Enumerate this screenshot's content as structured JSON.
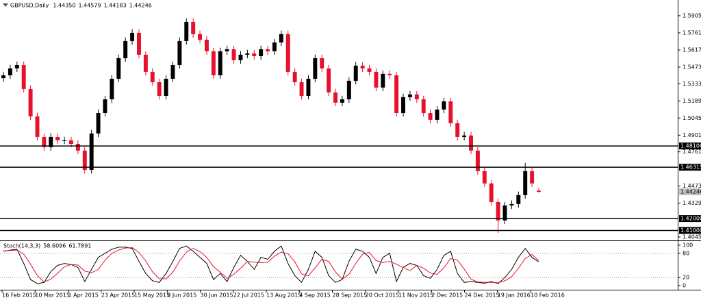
{
  "chart_data": {
    "type": "candlestick",
    "symbol": "GBPUSD,Daily",
    "header_values": [
      "1.44350",
      "1.44579",
      "1.44183",
      "1.44246"
    ],
    "up_color": "#000000",
    "down_color": "#e8112d",
    "ohlc": [
      [
        1.538,
        1.5434,
        1.535,
        1.5404
      ],
      [
        1.5404,
        1.5492,
        1.5374,
        1.5462
      ],
      [
        1.5462,
        1.552,
        1.5432,
        1.549
      ],
      [
        1.549,
        1.552,
        1.5259,
        1.5289
      ],
      [
        1.5289,
        1.5319,
        1.5029,
        1.5059
      ],
      [
        1.5059,
        1.5089,
        1.4856,
        1.4886
      ],
      [
        1.4886,
        1.4916,
        1.477,
        1.48
      ],
      [
        1.48,
        1.4916,
        1.477,
        1.4886
      ],
      [
        1.4886,
        1.4916,
        1.4827,
        1.4857
      ],
      [
        1.4857,
        1.4887,
        1.4827,
        1.4857
      ],
      [
        1.4857,
        1.4887,
        1.4798,
        1.4828
      ],
      [
        1.4828,
        1.4858,
        1.4741,
        1.4771
      ],
      [
        1.4771,
        1.4801,
        1.4579,
        1.4609
      ],
      [
        1.4609,
        1.4945,
        1.4579,
        1.4915
      ],
      [
        1.4915,
        1.5117,
        1.4885,
        1.5087
      ],
      [
        1.5087,
        1.5232,
        1.5057,
        1.5202
      ],
      [
        1.5202,
        1.5405,
        1.5172,
        1.5375
      ],
      [
        1.5375,
        1.5578,
        1.5345,
        1.5548
      ],
      [
        1.5548,
        1.5722,
        1.5518,
        1.5692
      ],
      [
        1.5692,
        1.5791,
        1.5662,
        1.5761
      ],
      [
        1.5761,
        1.5791,
        1.5547,
        1.5577
      ],
      [
        1.5577,
        1.5607,
        1.5403,
        1.5433
      ],
      [
        1.5433,
        1.5463,
        1.5316,
        1.5346
      ],
      [
        1.5346,
        1.5376,
        1.5201,
        1.5231
      ],
      [
        1.5231,
        1.5405,
        1.5201,
        1.5375
      ],
      [
        1.5375,
        1.552,
        1.5345,
        1.549
      ],
      [
        1.549,
        1.5722,
        1.546,
        1.5692
      ],
      [
        1.5692,
        1.5883,
        1.5662,
        1.5853
      ],
      [
        1.5853,
        1.5883,
        1.572,
        1.575
      ],
      [
        1.575,
        1.578,
        1.5673,
        1.5703
      ],
      [
        1.5703,
        1.5733,
        1.5576,
        1.5606
      ],
      [
        1.5606,
        1.5636,
        1.5374,
        1.5404
      ],
      [
        1.5404,
        1.5636,
        1.5374,
        1.5606
      ],
      [
        1.5606,
        1.5653,
        1.5576,
        1.5623
      ],
      [
        1.5623,
        1.5653,
        1.5501,
        1.5531
      ],
      [
        1.5531,
        1.5607,
        1.5501,
        1.5577
      ],
      [
        1.5577,
        1.5618,
        1.5547,
        1.5588
      ],
      [
        1.5588,
        1.5618,
        1.5535,
        1.5565
      ],
      [
        1.5565,
        1.5653,
        1.5535,
        1.5623
      ],
      [
        1.5623,
        1.5653,
        1.5576,
        1.5606
      ],
      [
        1.5606,
        1.571,
        1.5576,
        1.568
      ],
      [
        1.568,
        1.578,
        1.565,
        1.575
      ],
      [
        1.575,
        1.578,
        1.5403,
        1.5433
      ],
      [
        1.5433,
        1.5463,
        1.5316,
        1.5346
      ],
      [
        1.5346,
        1.5376,
        1.5201,
        1.5231
      ],
      [
        1.5231,
        1.5405,
        1.5201,
        1.5375
      ],
      [
        1.5375,
        1.5578,
        1.5345,
        1.5548
      ],
      [
        1.5548,
        1.5578,
        1.5432,
        1.5462
      ],
      [
        1.5462,
        1.5492,
        1.523,
        1.526
      ],
      [
        1.526,
        1.529,
        1.5144,
        1.5174
      ],
      [
        1.5174,
        1.5232,
        1.5144,
        1.5202
      ],
      [
        1.5202,
        1.5388,
        1.5172,
        1.5358
      ],
      [
        1.5358,
        1.5515,
        1.5328,
        1.5485
      ],
      [
        1.5485,
        1.5515,
        1.5432,
        1.5462
      ],
      [
        1.5462,
        1.5492,
        1.5403,
        1.5433
      ],
      [
        1.5433,
        1.5463,
        1.5271,
        1.5301
      ],
      [
        1.5301,
        1.5446,
        1.5271,
        1.5416
      ],
      [
        1.5416,
        1.5446,
        1.5374,
        1.5404
      ],
      [
        1.5404,
        1.5434,
        1.5057,
        1.5087
      ],
      [
        1.5087,
        1.525,
        1.5057,
        1.522
      ],
      [
        1.522,
        1.5273,
        1.519,
        1.5243
      ],
      [
        1.5243,
        1.5273,
        1.5172,
        1.5202
      ],
      [
        1.5202,
        1.5232,
        1.5057,
        1.5087
      ],
      [
        1.5087,
        1.5117,
        1.5,
        1.503
      ],
      [
        1.503,
        1.5146,
        1.5,
        1.5116
      ],
      [
        1.5116,
        1.5215,
        1.5086,
        1.5185
      ],
      [
        1.5185,
        1.5215,
        1.4971,
        1.5001
      ],
      [
        1.5001,
        1.5031,
        1.4856,
        1.4886
      ],
      [
        1.4886,
        1.4928,
        1.4856,
        1.4898
      ],
      [
        1.4898,
        1.4928,
        1.4741,
        1.4771
      ],
      [
        1.4771,
        1.4801,
        1.4568,
        1.4598
      ],
      [
        1.4598,
        1.4628,
        1.4465,
        1.4495
      ],
      [
        1.4495,
        1.4525,
        1.4309,
        1.4339
      ],
      [
        1.4339,
        1.4369,
        1.4079,
        1.4184
      ],
      [
        1.4184,
        1.434,
        1.4154,
        1.431
      ],
      [
        1.431,
        1.4352,
        1.428,
        1.4322
      ],
      [
        1.4322,
        1.4427,
        1.4292,
        1.4397
      ],
      [
        1.4397,
        1.4668,
        1.4367,
        1.4598
      ],
      [
        1.4598,
        1.4628,
        1.4465,
        1.4495
      ],
      [
        1.4435,
        1.44579,
        1.44183,
        1.44246
      ]
    ],
    "ylim": [
      1.4022,
      1.6037
    ],
    "yticks": [
      {
        "value": 1.5905,
        "label": "1.59050"
      },
      {
        "value": 1.5761,
        "label": "1.57610"
      },
      {
        "value": 1.5617,
        "label": "1.56170"
      },
      {
        "value": 1.5473,
        "label": "1.54730"
      },
      {
        "value": 1.5333,
        "label": "1.53330"
      },
      {
        "value": 1.5189,
        "label": "1.51890"
      },
      {
        "value": 1.5045,
        "label": "1.50450"
      },
      {
        "value": 1.4901,
        "label": "1.49010"
      },
      {
        "value": 1.4761,
        "label": "1.47610"
      },
      {
        "value": 1.4473,
        "label": "1.44730"
      },
      {
        "value": 1.4329,
        "label": "1.43290"
      },
      {
        "value": 1.4045,
        "label": "1.40450"
      }
    ],
    "levels": [
      {
        "value": 1.481,
        "label": "1.48100"
      },
      {
        "value": 1.46315,
        "label": "1.46315"
      },
      {
        "value": 1.42,
        "label": "1.42000"
      },
      {
        "value": 1.41,
        "label": "1.41000"
      }
    ],
    "x_labels": [
      "16 Feb 2015",
      "10 Mar 2015",
      "1 Apr 2015",
      "23 Apr 2015",
      "15 May 2015",
      "8 Jun 2015",
      "30 Jun 2015",
      "22 Jul 2015",
      "13 Aug 2015",
      "4 Sep 2015",
      "28 Sep 2015",
      "20 Oct 2015",
      "11 Nov 2015",
      "2 Dec 2015",
      "24 Dec 2015",
      "19 Jan 2016",
      "10 Feb 2016"
    ],
    "stoch": {
      "title": "Stoch(14,3,3)",
      "ylim": [
        0,
        100
      ],
      "yticks": [
        100,
        80,
        20,
        0
      ],
      "series": [
        {
          "color": "#000000",
          "values": [
            85,
            88,
            90,
            55,
            15,
            5,
            8,
            35,
            50,
            55,
            52,
            45,
            10,
            40,
            70,
            80,
            90,
            95,
            95,
            92,
            60,
            30,
            12,
            8,
            30,
            60,
            92,
            98,
            85,
            70,
            55,
            15,
            30,
            10,
            45,
            75,
            60,
            40,
            70,
            65,
            85,
            98,
            55,
            25,
            8,
            40,
            85,
            70,
            25,
            8,
            15,
            60,
            90,
            85,
            70,
            30,
            70,
            80,
            10,
            45,
            55,
            50,
            25,
            18,
            40,
            75,
            85,
            30,
            8,
            10,
            8,
            6,
            10,
            5,
            20,
            40,
            70,
            92,
            70,
            58.6096
          ]
        },
        {
          "color": "#e8112d",
          "values": [
            86,
            87,
            88,
            78,
            53,
            25,
            9,
            16,
            31,
            47,
            52,
            51,
            36,
            32,
            40,
            63,
            80,
            88,
            93,
            94,
            82,
            61,
            34,
            17,
            17,
            33,
            61,
            83,
            92,
            84,
            70,
            47,
            33,
            18,
            28,
            43,
            60,
            58,
            57,
            58,
            73,
            83,
            79,
            59,
            29,
            24,
            44,
            65,
            60,
            34,
            16,
            28,
            55,
            78,
            82,
            62,
            57,
            60,
            53,
            45,
            37,
            50,
            43,
            31,
            28,
            44,
            67,
            63,
            41,
            16,
            9,
            8,
            8,
            7,
            12,
            22,
            43,
            67,
            77,
            61.7891
          ]
        }
      ]
    }
  }
}
